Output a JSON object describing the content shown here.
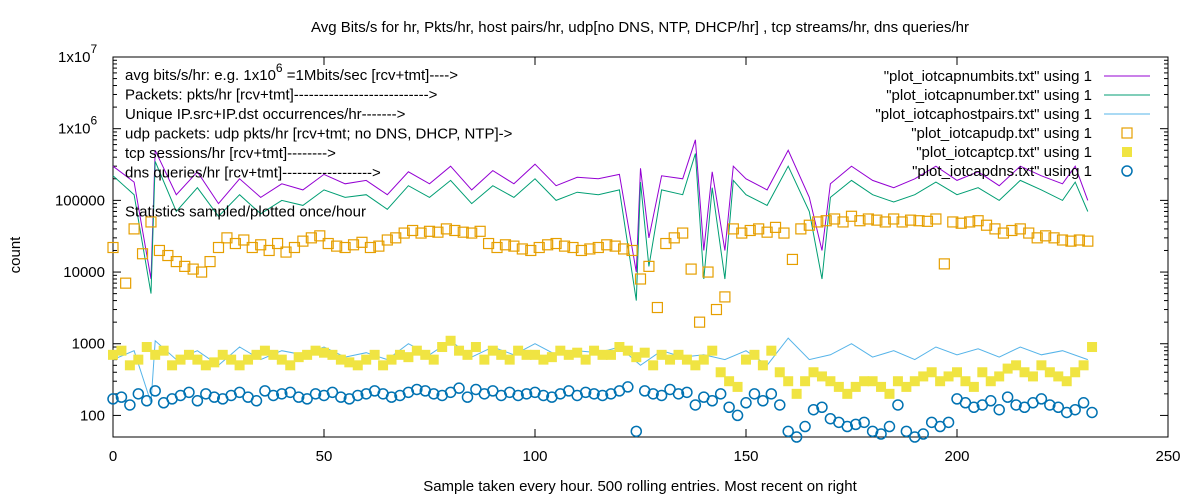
{
  "chart_data": {
    "type": "line",
    "title": "Avg Bits/s for hr, Pkts/hr, host pairs/hr, udp[no DNS, NTP, DHCP/hr] , tcp streams/hr, dns queries/hr",
    "xlabel": "Sample taken every hour.  500 rolling entries.  Most recent on right",
    "ylabel": "count",
    "xlim": [
      0,
      250
    ],
    "ylim": [
      50,
      10000000
    ],
    "yscale": "log",
    "x_ticks": [
      0,
      50,
      100,
      150,
      200,
      250
    ],
    "y_ticks": [
      {
        "value": 100,
        "label": "100"
      },
      {
        "value": 1000,
        "label": "1000"
      },
      {
        "value": 10000,
        "label": "10000"
      },
      {
        "value": 100000,
        "label": "100000"
      },
      {
        "value": 1000000,
        "label": "1x10",
        "exp": "6"
      },
      {
        "value": 10000000,
        "label": "1x10",
        "exp": "7"
      }
    ],
    "annotations": [
      {
        "text": "avg bits/s/hr: e.g. 1x10",
        "sup": "6",
        "tail": " =1Mbits/sec [rcv+tmt]---->"
      },
      {
        "text": "Packets: pkts/hr [rcv+tmt]--------------------------->"
      },
      {
        "text": "Unique IP.src+IP.dst occurrences/hr------->"
      },
      {
        "text": "udp packets: udp pkts/hr [rcv+tmt; no DNS, DHCP, NTP]->"
      },
      {
        "text": "tcp sessions/hr [rcv+tmt]-------->"
      },
      {
        "text": "dns queries/hr [rcv+tmt]------------------>"
      },
      {
        "text": ""
      },
      {
        "text": "Statistics sampled/plotted once/hour"
      }
    ],
    "series": [
      {
        "name": "\"plot_iotcapnumbits.txt\" using 1",
        "style": "line",
        "color": "#9400d3",
        "x": [
          0,
          5,
          9,
          10,
          15,
          20,
          25,
          30,
          35,
          40,
          45,
          50,
          55,
          60,
          65,
          70,
          75,
          80,
          85,
          90,
          95,
          100,
          105,
          110,
          115,
          120,
          124,
          125,
          127,
          130,
          135,
          138,
          140,
          142,
          145,
          147,
          150,
          155,
          160,
          165,
          168,
          170,
          175,
          180,
          185,
          190,
          195,
          200,
          205,
          210,
          215,
          220,
          225,
          228,
          231
        ],
        "values": [
          300000,
          180000,
          8000,
          500000,
          120000,
          250000,
          90000,
          200000,
          110000,
          170000,
          140000,
          230000,
          170000,
          190000,
          120000,
          250000,
          170000,
          300000,
          140000,
          260000,
          170000,
          320000,
          160000,
          210000,
          200000,
          230000,
          10000,
          280000,
          30000,
          220000,
          200000,
          700000,
          20000,
          250000,
          20000,
          300000,
          200000,
          140000,
          500000,
          110000,
          20000,
          170000,
          300000,
          190000,
          150000,
          200000,
          300000,
          190000,
          250000,
          160000,
          300000,
          220000,
          170000,
          300000,
          100000
        ]
      },
      {
        "name": "\"plot_iotcapnumber.txt\" using 1",
        "style": "line",
        "color": "#009e73",
        "x": [
          0,
          5,
          9,
          10,
          15,
          20,
          25,
          30,
          35,
          40,
          45,
          50,
          55,
          60,
          65,
          70,
          75,
          80,
          85,
          90,
          95,
          100,
          105,
          110,
          115,
          120,
          124,
          125,
          127,
          130,
          135,
          138,
          140,
          142,
          145,
          147,
          150,
          155,
          160,
          165,
          168,
          170,
          175,
          180,
          185,
          190,
          195,
          200,
          205,
          210,
          215,
          220,
          225,
          228,
          231
        ],
        "values": [
          220000,
          120000,
          5000,
          350000,
          70000,
          150000,
          60000,
          120000,
          65000,
          100000,
          85000,
          140000,
          110000,
          120000,
          75000,
          160000,
          110000,
          190000,
          90000,
          160000,
          110000,
          200000,
          100000,
          130000,
          120000,
          140000,
          4000,
          180000,
          12000,
          140000,
          120000,
          450000,
          8000,
          150000,
          8000,
          190000,
          120000,
          85000,
          300000,
          70000,
          8000,
          110000,
          190000,
          120000,
          95000,
          120000,
          180000,
          120000,
          150000,
          100000,
          190000,
          140000,
          100000,
          180000,
          70000
        ]
      },
      {
        "name": "\"plot_iotcaphostpairs.txt\" using 1",
        "style": "line",
        "color": "#56b4e9",
        "x": [
          0,
          5,
          9,
          10,
          15,
          20,
          25,
          30,
          35,
          40,
          45,
          50,
          55,
          60,
          65,
          70,
          75,
          80,
          85,
          90,
          95,
          100,
          105,
          110,
          115,
          120,
          125,
          130,
          135,
          140,
          145,
          150,
          155,
          160,
          165,
          170,
          175,
          180,
          185,
          190,
          195,
          200,
          205,
          210,
          215,
          220,
          225,
          231
        ],
        "values": [
          600,
          800,
          150,
          1100,
          600,
          800,
          500,
          900,
          600,
          800,
          700,
          900,
          650,
          750,
          600,
          1000,
          700,
          1100,
          650,
          900,
          700,
          1000,
          700,
          800,
          750,
          900,
          500,
          800,
          650,
          700,
          600,
          800,
          500,
          1200,
          600,
          700,
          1000,
          650,
          800,
          600,
          900,
          700,
          850,
          650,
          900,
          700,
          800,
          600
        ]
      },
      {
        "name": "\"plot_iotcapudp.txt\" using 1",
        "style": "square",
        "color": "#e69f00",
        "x": [
          0,
          3,
          5,
          7,
          9,
          11,
          13,
          15,
          17,
          19,
          21,
          23,
          25,
          27,
          29,
          31,
          33,
          35,
          37,
          39,
          41,
          43,
          45,
          47,
          49,
          51,
          53,
          55,
          57,
          59,
          61,
          63,
          65,
          67,
          69,
          71,
          73,
          75,
          77,
          79,
          81,
          83,
          85,
          87,
          89,
          91,
          93,
          95,
          97,
          99,
          101,
          103,
          105,
          107,
          109,
          111,
          113,
          115,
          117,
          119,
          121,
          123,
          125,
          127,
          129,
          131,
          133,
          135,
          137,
          139,
          141,
          143,
          145,
          147,
          149,
          151,
          153,
          155,
          157,
          159,
          161,
          163,
          165,
          167,
          169,
          171,
          173,
          175,
          177,
          179,
          181,
          183,
          185,
          187,
          189,
          191,
          193,
          195,
          197,
          199,
          201,
          203,
          205,
          207,
          209,
          211,
          213,
          215,
          217,
          219,
          221,
          223,
          225,
          227,
          229,
          231
        ],
        "values": [
          22000,
          7000,
          40000,
          18000,
          50000,
          20000,
          17000,
          14000,
          12000,
          11000,
          10000,
          14000,
          22000,
          30000,
          25000,
          28000,
          22000,
          24000,
          20000,
          25000,
          19000,
          22000,
          27000,
          30000,
          32000,
          25000,
          23000,
          22000,
          24000,
          26000,
          22000,
          23000,
          28000,
          30000,
          35000,
          38000,
          35000,
          37000,
          36000,
          40000,
          38000,
          36000,
          35000,
          37000,
          25000,
          22000,
          24000,
          23000,
          21000,
          20000,
          22000,
          24000,
          25000,
          23000,
          22000,
          20000,
          21000,
          22000,
          24000,
          23000,
          21000,
          20000,
          8000,
          12000,
          3200,
          25000,
          30000,
          35000,
          11000,
          2000,
          10000,
          3000,
          4500,
          40000,
          35000,
          38000,
          40000,
          36000,
          42000,
          35000,
          15000,
          40000,
          45000,
          50000,
          52000,
          55000,
          50000,
          60000,
          52000,
          55000,
          53000,
          50000,
          55000,
          50000,
          53000,
          52000,
          51000,
          55000,
          13000,
          50000,
          48000,
          50000,
          52000,
          45000,
          40000,
          35000,
          38000,
          40000,
          35000,
          30000,
          32000,
          30000,
          28000,
          27000,
          28000,
          27000
        ]
      },
      {
        "name": "\"plot_iotcaptcp.txt\" using 1",
        "style": "filled-square",
        "color": "#f0e442",
        "x": [
          0,
          2,
          4,
          6,
          8,
          10,
          12,
          14,
          16,
          18,
          20,
          22,
          24,
          26,
          28,
          30,
          32,
          34,
          36,
          38,
          40,
          42,
          44,
          46,
          48,
          50,
          52,
          54,
          56,
          58,
          60,
          62,
          64,
          66,
          68,
          70,
          72,
          74,
          76,
          78,
          80,
          82,
          84,
          86,
          88,
          90,
          92,
          94,
          96,
          98,
          100,
          102,
          104,
          106,
          108,
          110,
          112,
          114,
          116,
          118,
          120,
          122,
          124,
          126,
          128,
          130,
          132,
          134,
          136,
          138,
          140,
          142,
          144,
          146,
          148,
          150,
          152,
          154,
          156,
          158,
          160,
          162,
          164,
          166,
          168,
          170,
          172,
          174,
          176,
          178,
          180,
          182,
          184,
          186,
          188,
          190,
          192,
          194,
          196,
          198,
          200,
          202,
          204,
          206,
          208,
          210,
          212,
          214,
          216,
          218,
          220,
          222,
          224,
          226,
          228,
          230,
          232
        ],
        "values": [
          700,
          800,
          500,
          600,
          900,
          700,
          800,
          500,
          600,
          700,
          600,
          500,
          550,
          700,
          600,
          500,
          600,
          700,
          800,
          700,
          600,
          500,
          650,
          700,
          800,
          750,
          700,
          600,
          550,
          500,
          600,
          700,
          500,
          600,
          700,
          650,
          800,
          700,
          600,
          900,
          1100,
          800,
          700,
          900,
          600,
          800,
          700,
          600,
          800,
          700,
          700,
          600,
          650,
          800,
          700,
          750,
          600,
          800,
          700,
          700,
          900,
          800,
          650,
          750,
          500,
          700,
          600,
          700,
          600,
          500,
          600,
          800,
          400,
          300,
          250,
          600,
          700,
          500,
          800,
          400,
          300,
          200,
          300,
          400,
          350,
          300,
          250,
          200,
          250,
          300,
          300,
          250,
          200,
          300,
          250,
          300,
          350,
          400,
          300,
          350,
          400,
          300,
          250,
          400,
          300,
          350,
          450,
          500,
          400,
          350,
          500,
          400,
          350,
          300,
          400,
          500,
          900
        ]
      },
      {
        "name": "\"plot_iotcapdns.txt\" using 1",
        "style": "circle",
        "color": "#0072b2",
        "x": [
          0,
          2,
          4,
          6,
          8,
          10,
          12,
          14,
          16,
          18,
          20,
          22,
          24,
          26,
          28,
          30,
          32,
          34,
          36,
          38,
          40,
          42,
          44,
          46,
          48,
          50,
          52,
          54,
          56,
          58,
          60,
          62,
          64,
          66,
          68,
          70,
          72,
          74,
          76,
          78,
          80,
          82,
          84,
          86,
          88,
          90,
          92,
          94,
          96,
          98,
          100,
          102,
          104,
          106,
          108,
          110,
          112,
          114,
          116,
          118,
          120,
          122,
          124,
          126,
          128,
          130,
          132,
          134,
          136,
          138,
          140,
          142,
          144,
          146,
          148,
          150,
          152,
          154,
          156,
          158,
          160,
          162,
          164,
          166,
          168,
          170,
          172,
          174,
          176,
          178,
          180,
          182,
          184,
          186,
          188,
          190,
          192,
          194,
          196,
          198,
          200,
          202,
          204,
          206,
          208,
          210,
          212,
          214,
          216,
          218,
          220,
          222,
          224,
          226,
          228,
          230,
          232
        ],
        "values": [
          170,
          180,
          140,
          200,
          160,
          220,
          150,
          170,
          190,
          210,
          160,
          200,
          180,
          170,
          190,
          210,
          180,
          160,
          220,
          190,
          200,
          210,
          180,
          170,
          200,
          190,
          210,
          180,
          170,
          190,
          200,
          220,
          200,
          180,
          190,
          210,
          230,
          220,
          200,
          190,
          210,
          240,
          180,
          230,
          200,
          220,
          190,
          210,
          190,
          200,
          210,
          190,
          180,
          200,
          220,
          190,
          210,
          200,
          190,
          200,
          220,
          250,
          60,
          220,
          200,
          190,
          230,
          200,
          210,
          140,
          180,
          160,
          200,
          130,
          100,
          150,
          200,
          160,
          200,
          140,
          60,
          50,
          70,
          120,
          130,
          90,
          80,
          70,
          75,
          80,
          60,
          55,
          70,
          140,
          60,
          50,
          55,
          80,
          70,
          80,
          170,
          150,
          130,
          140,
          160,
          120,
          180,
          140,
          130,
          150,
          170,
          140,
          130,
          110,
          120,
          150,
          110
        ]
      }
    ]
  }
}
